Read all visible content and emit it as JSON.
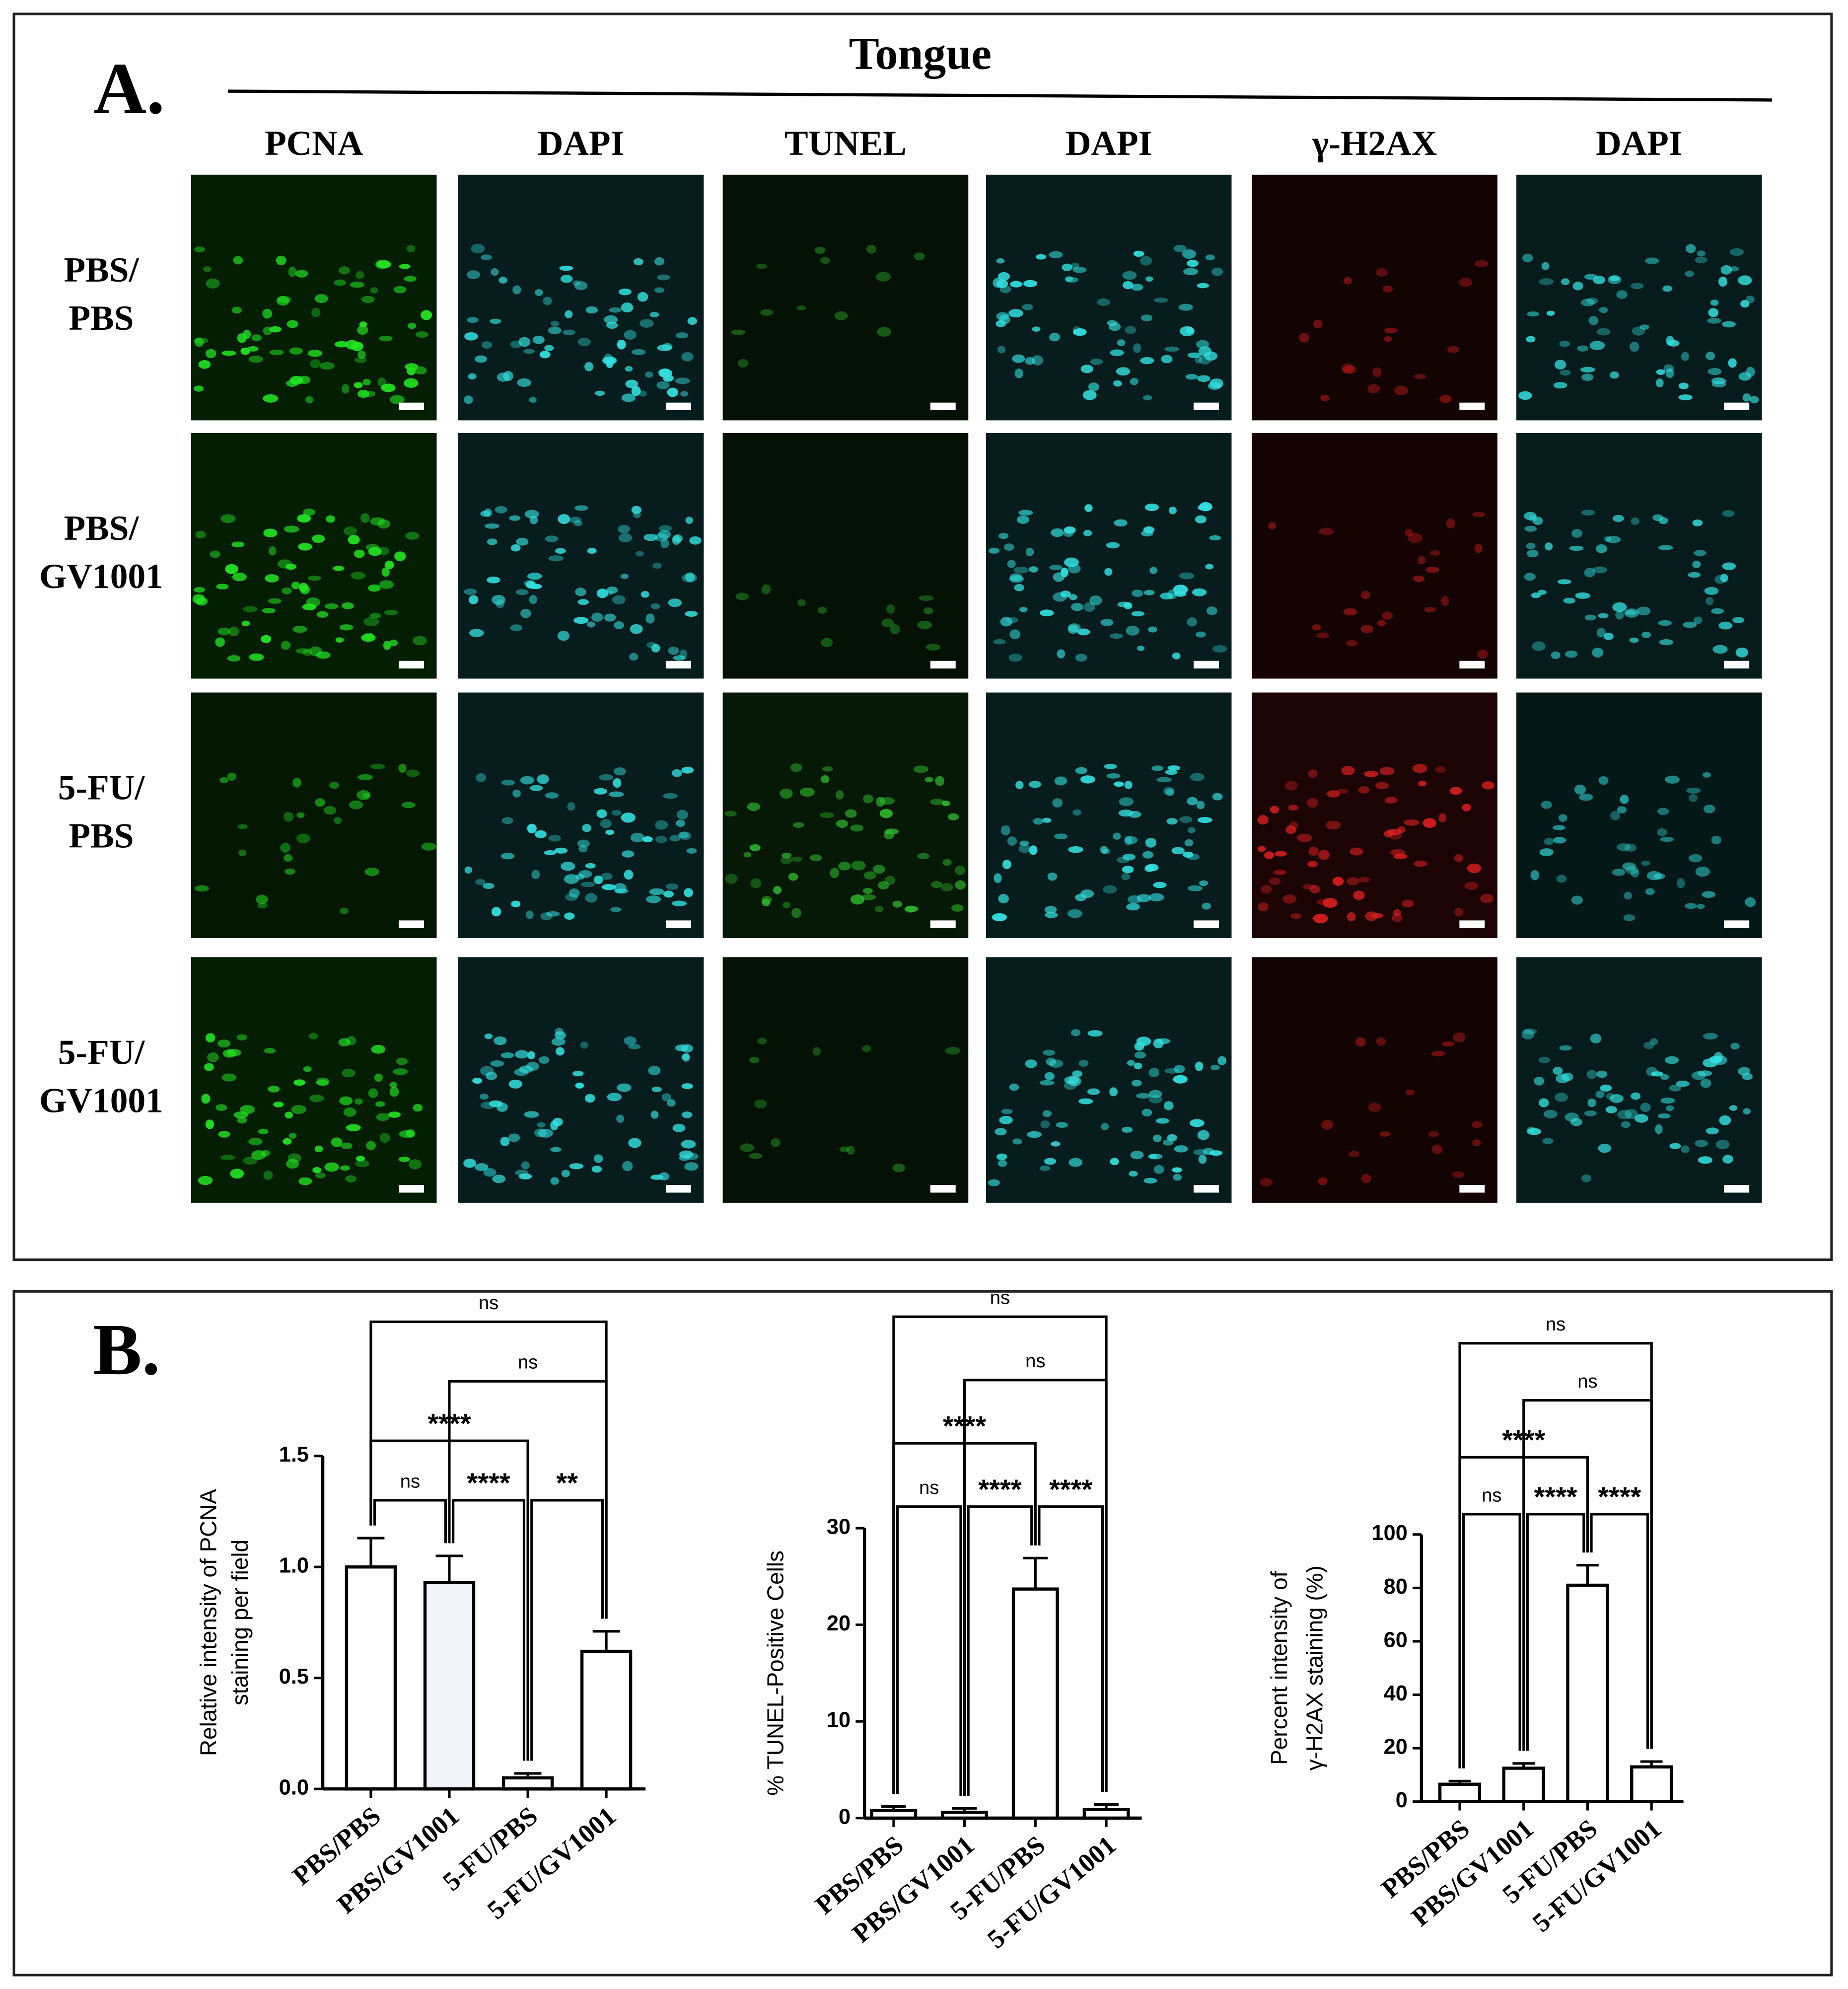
{
  "panel_a": {
    "label": "A.",
    "title": "Tongue",
    "columns": [
      "PCNA",
      "DAPI",
      "TUNEL",
      "DAPI",
      "γ-H2AX",
      "DAPI"
    ],
    "rows": [
      [
        "PBS/",
        "PBS"
      ],
      [
        "PBS/",
        "GV1001"
      ],
      [
        "5-FU/",
        "PBS"
      ],
      [
        "5-FU/",
        "GV1001"
      ]
    ]
  },
  "panel_b": {
    "label": "B."
  },
  "chart_data": [
    {
      "type": "bar",
      "y_label": [
        "Relative intensity of PCNA",
        "staining per field"
      ],
      "categories": [
        "PBS/PBS",
        "PBS/GV1001",
        "5-FU/PBS",
        "5-FU/GV1001"
      ],
      "values": [
        1.0,
        0.93,
        0.05,
        0.62
      ],
      "errors": [
        0.13,
        0.12,
        0.02,
        0.09
      ],
      "colors": [
        "#ffffff",
        "#f3f3fc",
        "#ffffff",
        "#ffffff"
      ],
      "ylim": [
        0,
        1.5
      ],
      "yticks": [
        {
          "value": 0,
          "label": "0.0"
        },
        0.5,
        {
          "value": 1,
          "label": "1.0"
        },
        1.5
      ],
      "comparisons": [
        {
          "groups": [
            0,
            1
          ],
          "label": "ns"
        },
        {
          "groups": [
            1,
            2
          ],
          "label": "****"
        },
        {
          "groups": [
            2,
            3
          ],
          "label": "**"
        },
        {
          "groups": [
            0,
            2
          ],
          "label": "****"
        },
        {
          "groups": [
            1,
            3
          ],
          "label": "ns"
        },
        {
          "groups": [
            0,
            3
          ],
          "label": "ns"
        }
      ]
    },
    {
      "type": "bar",
      "y_label": [
        "% TUNEL-Positive Cells"
      ],
      "categories": [
        "PBS/PBS",
        "PBS/GV1001",
        "5-FU/PBS",
        "5-FU/GV1001"
      ],
      "values": [
        0.8,
        0.6,
        23.7,
        0.9
      ],
      "errors": [
        0.4,
        0.4,
        3.2,
        0.5
      ],
      "colors": [
        "#ffffff",
        "#ffffff",
        "#ffffff",
        "#ffffff"
      ],
      "ylim": [
        0,
        30
      ],
      "yticks": [
        0,
        10,
        20,
        30
      ],
      "comparisons": [
        {
          "groups": [
            0,
            1
          ],
          "label": "ns"
        },
        {
          "groups": [
            1,
            2
          ],
          "label": "****"
        },
        {
          "groups": [
            0,
            2
          ],
          "label": "****"
        },
        {
          "groups": [
            2,
            3
          ],
          "label": "****"
        },
        {
          "groups": [
            1,
            3
          ],
          "label": "ns"
        },
        {
          "groups": [
            0,
            3
          ],
          "label": "ns"
        }
      ]
    },
    {
      "type": "bar",
      "y_label": [
        "Percent intensity of",
        "γ-H2AX staining (%)"
      ],
      "categories": [
        "PBS/PBS",
        "PBS/GV1001",
        "5-FU/PBS",
        "5-FU/GV1001"
      ],
      "values": [
        6.5,
        12.5,
        81,
        13
      ],
      "errors": [
        1.2,
        1.8,
        7.5,
        2
      ],
      "colors": [
        "#ffffff",
        "#ffffff",
        "#ffffff",
        "#ffffff"
      ],
      "ylim": [
        0,
        100
      ],
      "yticks": [
        0,
        20,
        40,
        60,
        80,
        100
      ],
      "comparisons": [
        {
          "groups": [
            0,
            1
          ],
          "label": "ns"
        },
        {
          "groups": [
            1,
            2
          ],
          "label": "****"
        },
        {
          "groups": [
            0,
            2
          ],
          "label": "****"
        },
        {
          "groups": [
            2,
            3
          ],
          "label": "****"
        },
        {
          "groups": [
            1,
            3
          ],
          "label": "ns"
        },
        {
          "groups": [
            0,
            3
          ],
          "label": "ns"
        }
      ]
    }
  ]
}
